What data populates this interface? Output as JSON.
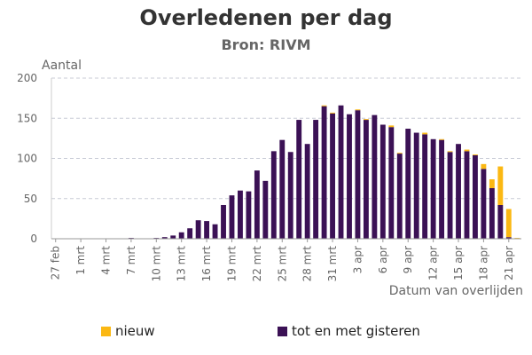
{
  "chart_data": {
    "type": "bar",
    "stacked": true,
    "title": "Overledenen per dag",
    "subtitle": "Bron: RIVM",
    "ylabel": "Aantal",
    "xlabel": "Datum van overlijden",
    "ylim": [
      0,
      200
    ],
    "yticks": [
      0,
      50,
      100,
      150,
      200
    ],
    "grid": true,
    "legend_position": "bottom",
    "colors": {
      "tot": "#3b1155",
      "nieuw": "#fbb813",
      "grid": "#c8cbd6",
      "axis": "#999999"
    },
    "x_tick_labels": [
      "27 feb",
      "1 mrt",
      "4 mrt",
      "7 mrt",
      "10 mrt",
      "13 mrt",
      "16 mrt",
      "19 mrt",
      "22 mrt",
      "25 mrt",
      "28 mrt",
      "31 mrt",
      "3 apr",
      "6 apr",
      "9 apr",
      "12 apr",
      "15 apr",
      "18 apr",
      "21 apr"
    ],
    "x_tick_every": 3,
    "series": [
      {
        "name": "tot en met gisteren",
        "color": "#3b1155",
        "values": [
          0,
          0,
          0,
          0,
          0,
          0,
          0,
          0,
          0,
          1,
          0,
          0,
          1,
          2,
          4,
          8,
          13,
          23,
          22,
          18,
          42,
          54,
          60,
          59,
          85,
          72,
          109,
          123,
          108,
          148,
          118,
          148,
          165,
          156,
          166,
          155,
          160,
          148,
          154,
          142,
          139,
          106,
          137,
          132,
          130,
          124,
          123,
          108,
          118,
          109,
          104,
          87,
          63,
          42,
          2,
          0
        ]
      },
      {
        "name": "nieuw",
        "color": "#fbb813",
        "values": [
          0,
          0,
          0,
          0,
          0,
          0,
          0,
          0,
          0,
          0,
          0,
          0,
          0,
          0,
          0,
          0,
          0,
          0,
          0,
          0,
          0,
          0,
          0,
          0,
          0,
          0,
          0,
          0,
          0,
          0,
          0,
          0,
          1,
          1,
          0,
          0,
          1,
          1,
          0,
          0,
          2,
          1,
          0,
          0,
          2,
          0,
          1,
          1,
          0,
          2,
          1,
          6,
          11,
          48,
          35,
          1
        ]
      }
    ]
  },
  "legend": {
    "nieuw": "nieuw",
    "tot": "tot en met gisteren"
  }
}
